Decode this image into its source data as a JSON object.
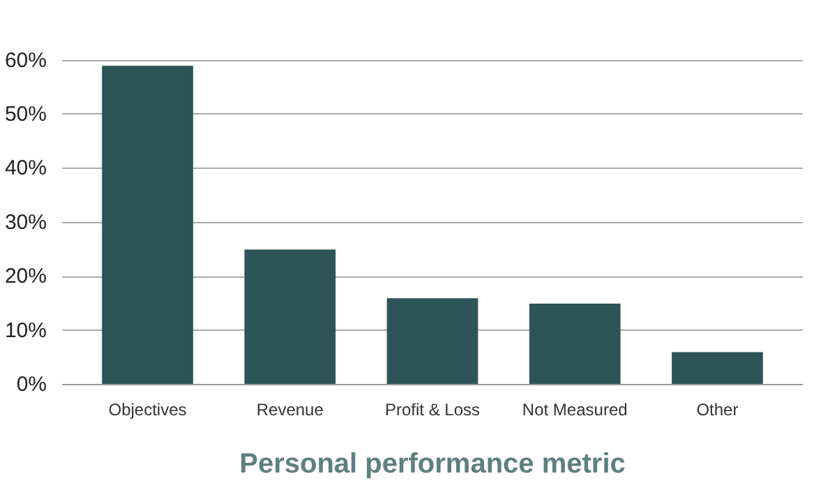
{
  "chart_data": {
    "type": "bar",
    "xlabel": "Personal performance metric",
    "categories": [
      "Objectives",
      "Revenue",
      "Profit & Loss",
      "Not Measured",
      "Other"
    ],
    "values": [
      59,
      25,
      16,
      15,
      6
    ],
    "color": "#2d5558",
    "ylim": [
      0,
      60
    ],
    "yticks": [
      {
        "value": 0,
        "label": "0%"
      },
      {
        "value": 10,
        "label": "10%"
      },
      {
        "value": 20,
        "label": "20%"
      },
      {
        "value": 30,
        "label": "30%"
      },
      {
        "value": 40,
        "label": "40%"
      },
      {
        "value": 50,
        "label": "50%"
      },
      {
        "value": 60,
        "label": "60%"
      }
    ],
    "grid": "y"
  }
}
